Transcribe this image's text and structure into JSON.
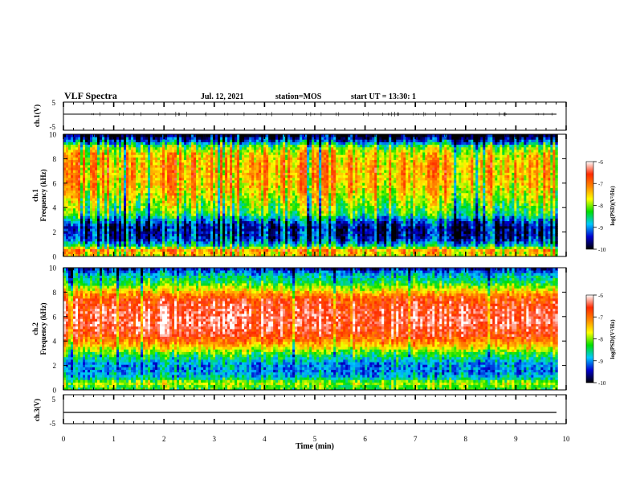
{
  "header": {
    "title": "VLF Spectra",
    "date": "Jul. 12, 2021",
    "station": "station=MOS",
    "start": "start UT = 13:30: 1"
  },
  "colorbar": {
    "label": "log(PSD)(V²/Hz)",
    "ticks": [
      "-6",
      "-7",
      "-8",
      "-9",
      "-10"
    ],
    "colors": [
      "#ffffff",
      "#ff2a00",
      "#ff8800",
      "#ffff00",
      "#00e000",
      "#00c8ff",
      "#0000d0",
      "#000000"
    ]
  },
  "chart_data": [
    {
      "type": "line",
      "ylabel": "ch.1(V)",
      "ylim": [
        -5,
        5
      ],
      "yticks": [
        "5",
        "-5"
      ],
      "xlim": [
        0,
        10
      ],
      "series": [
        {
          "constant_y": -0.5
        }
      ]
    },
    {
      "type": "heatmap",
      "ylabel": "ch.1\nFrequency (kHz)",
      "ylim": [
        0,
        10
      ],
      "yticks": [
        "0",
        "2",
        "4",
        "6",
        "8",
        "10"
      ],
      "xlim": [
        0,
        10
      ],
      "data_extent_x": [
        0,
        9.83
      ],
      "psd_range": [
        -10,
        -6
      ],
      "profile": [
        {
          "f": 0.2,
          "v": -7.6
        },
        {
          "f": 0.5,
          "v": -7.2
        },
        {
          "f": 0.9,
          "v": -8.6
        },
        {
          "f": 1.3,
          "v": -9.3
        },
        {
          "f": 1.8,
          "v": -9.5
        },
        {
          "f": 2.4,
          "v": -9.6
        },
        {
          "f": 3.0,
          "v": -9.0
        },
        {
          "f": 3.5,
          "v": -8.3
        },
        {
          "f": 4.5,
          "v": -7.9
        },
        {
          "f": 5.5,
          "v": -7.5
        },
        {
          "f": 6.5,
          "v": -7.3
        },
        {
          "f": 7.5,
          "v": -7.3
        },
        {
          "f": 8.5,
          "v": -7.6
        },
        {
          "f": 9.0,
          "v": -8.1
        },
        {
          "f": 9.5,
          "v": -9.3
        },
        {
          "f": 9.9,
          "v": -9.9
        }
      ]
    },
    {
      "type": "heatmap",
      "ylabel": "ch.2\nFrequency (kHz)",
      "ylim": [
        0,
        10
      ],
      "yticks": [
        "0",
        "2",
        "4",
        "6",
        "8",
        "10"
      ],
      "xlim": [
        0,
        10
      ],
      "data_extent_x": [
        0,
        9.83
      ],
      "psd_range": [
        -10,
        -6
      ],
      "profile": [
        {
          "f": 0.2,
          "v": -8.2
        },
        {
          "f": 0.6,
          "v": -7.8
        },
        {
          "f": 1.0,
          "v": -8.7
        },
        {
          "f": 1.6,
          "v": -9.0
        },
        {
          "f": 2.2,
          "v": -8.9
        },
        {
          "f": 3.0,
          "v": -8.2
        },
        {
          "f": 3.6,
          "v": -7.4
        },
        {
          "f": 4.5,
          "v": -6.6
        },
        {
          "f": 5.5,
          "v": -6.3
        },
        {
          "f": 6.5,
          "v": -6.4
        },
        {
          "f": 7.5,
          "v": -6.7
        },
        {
          "f": 8.2,
          "v": -7.6
        },
        {
          "f": 8.8,
          "v": -8.3
        },
        {
          "f": 9.5,
          "v": -8.8
        },
        {
          "f": 9.9,
          "v": -9.4
        }
      ]
    },
    {
      "type": "line",
      "ylabel": "ch.3(V)",
      "ylim": [
        -5,
        5
      ],
      "yticks": [
        "5",
        "-5"
      ],
      "xlim": [
        0,
        10
      ],
      "xlabel": "Time (min)",
      "xticks": [
        "0",
        "1",
        "2",
        "3",
        "4",
        "5",
        "6",
        "7",
        "8",
        "9",
        "10"
      ],
      "series": [
        {
          "constant_y": -1.5
        }
      ]
    }
  ]
}
